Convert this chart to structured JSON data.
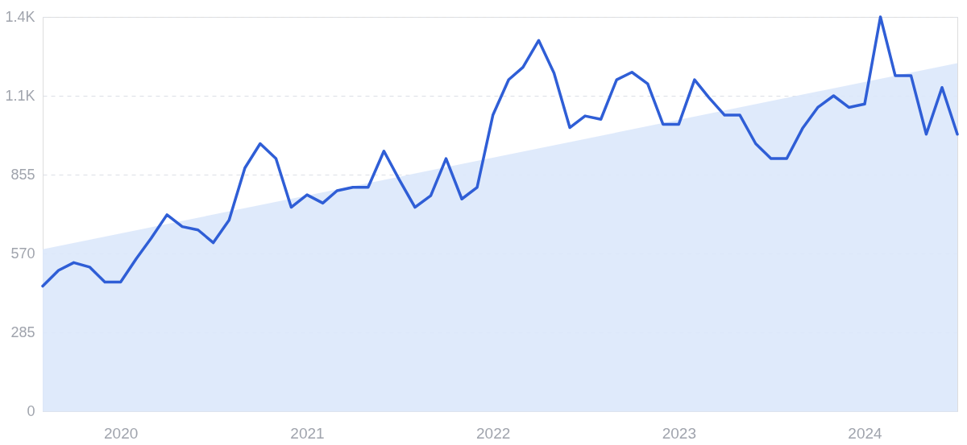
{
  "chart_data": {
    "type": "line",
    "x": [
      "2019-08",
      "2019-09",
      "2019-10",
      "2019-11",
      "2019-12",
      "2020-01",
      "2020-02",
      "2020-03",
      "2020-04",
      "2020-05",
      "2020-06",
      "2020-07",
      "2020-08",
      "2020-09",
      "2020-10",
      "2020-11",
      "2020-12",
      "2021-01",
      "2021-02",
      "2021-03",
      "2021-04",
      "2021-05",
      "2021-06",
      "2021-07",
      "2021-08",
      "2021-09",
      "2021-10",
      "2021-11",
      "2021-12",
      "2022-01",
      "2022-02",
      "2022-03",
      "2022-04",
      "2022-05",
      "2022-06",
      "2022-07",
      "2022-08",
      "2022-09",
      "2022-10",
      "2022-11",
      "2022-12",
      "2023-01",
      "2023-02",
      "2023-03",
      "2023-04",
      "2023-05",
      "2023-06",
      "2023-07",
      "2023-08",
      "2023-09",
      "2023-10",
      "2023-11",
      "2023-12",
      "2024-01",
      "2024-02",
      "2024-03",
      "2024-04",
      "2024-05",
      "2024-06",
      "2024-07"
    ],
    "series": [
      {
        "type": "area",
        "color": "#dce8fb",
        "x": [
          "2019-08",
          "2024-07"
        ],
        "values": [
          585,
          1258
        ]
      },
      {
        "color": "#2f5ed6",
        "values": [
          452,
          509,
          537,
          521,
          467,
          467,
          552,
          625,
          710,
          667,
          655,
          609,
          691,
          879,
          967,
          913,
          737,
          782,
          752,
          797,
          809,
          809,
          940,
          837,
          737,
          779,
          913,
          767,
          809,
          1070,
          1198,
          1243,
          1340,
          1222,
          1025,
          1067,
          1055,
          1198,
          1225,
          1183,
          1037,
          1037,
          1198,
          1134,
          1070,
          1070,
          967,
          913,
          913,
          1022,
          1098,
          1140,
          1098,
          1110,
          1425,
          1213,
          1213,
          1001,
          1170,
          1001
        ]
      }
    ],
    "xlim": [
      "2019-08",
      "2024-07"
    ],
    "xticks": [
      "2020",
      "2021",
      "2022",
      "2023",
      "2024"
    ],
    "ylim": [
      0,
      1425
    ],
    "yticks": [
      0,
      285,
      570,
      855,
      {
        "value": 1140,
        "label": "1.1K"
      },
      {
        "value": 1425,
        "label": "1.4K"
      }
    ],
    "grid": "y"
  }
}
